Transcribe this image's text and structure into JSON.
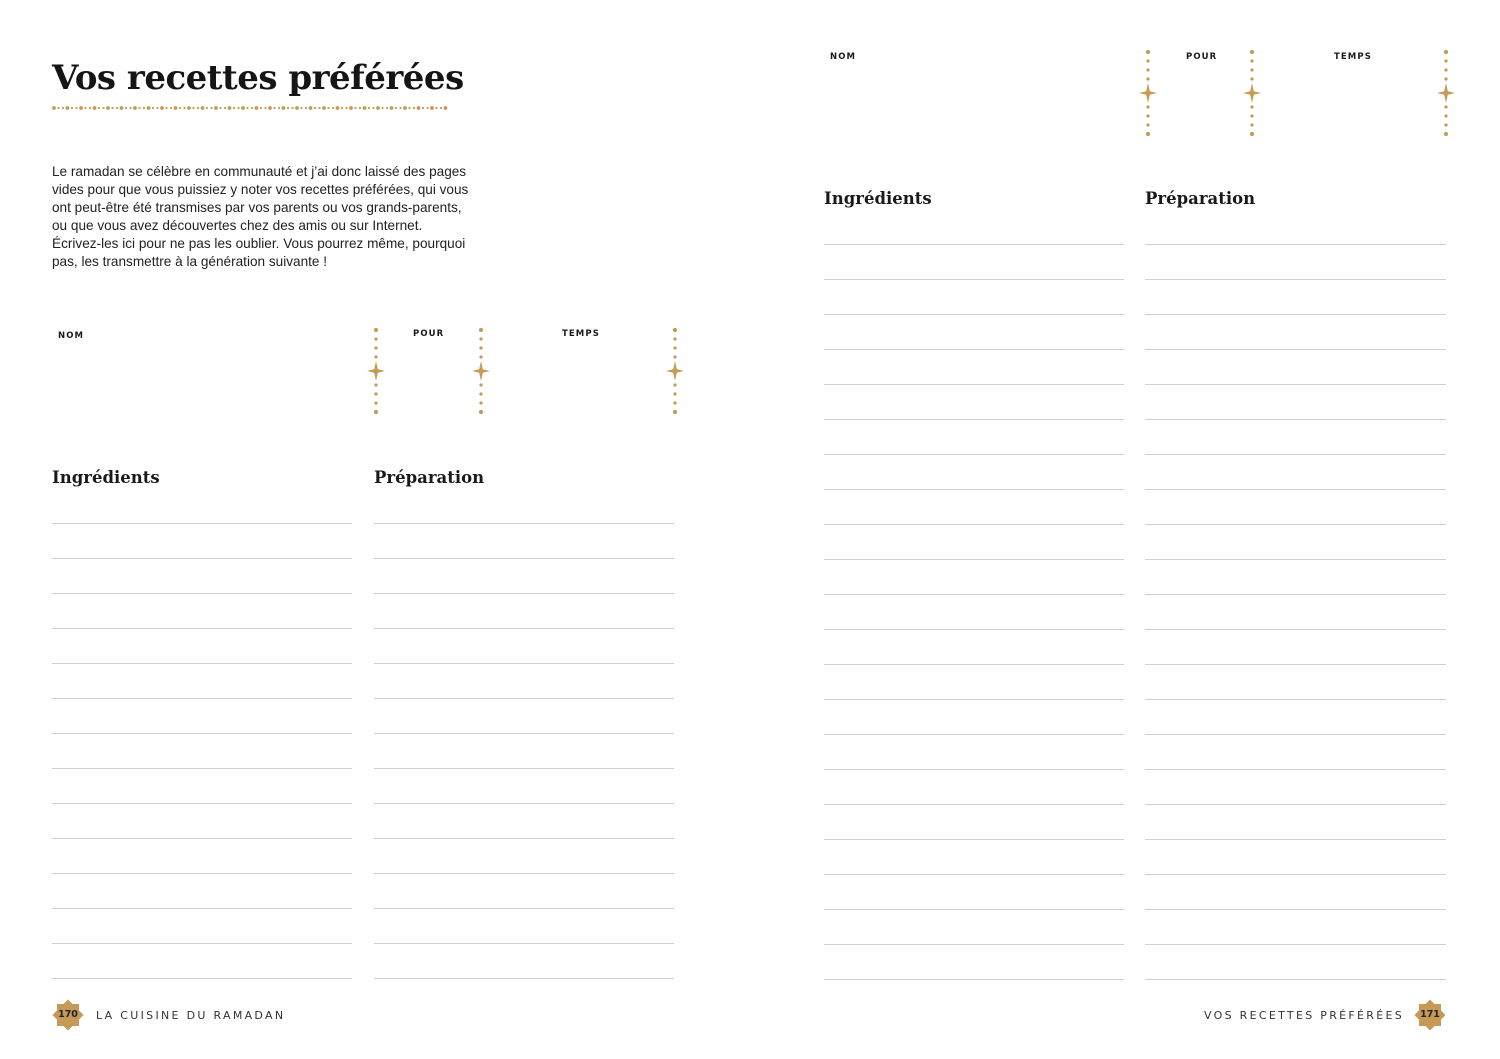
{
  "colors": {
    "accent": "#c49a56",
    "text": "#1a1a1a",
    "rule": "#cfcfcf"
  },
  "left_page": {
    "title": "Vos recettes préférées",
    "intro": "Le ramadan se célèbre en communauté et j’ai donc laissé des pages vides pour que vous puissiez y noter vos recettes préférées, qui vous ont peut-être été transmises par vos parents ou vos grands-parents, ou que vous avez découvertes chez des amis ou sur Internet. Écrivez-les ici pour ne pas les oublier. Vous pourrez même, pourquoi pas, les transmettre à la génération suivante !",
    "recipe": {
      "name_label": "NOM",
      "servings_label": "POUR",
      "time_label": "TEMPS",
      "ingredients_title": "Ingrédients",
      "preparation_title": "Préparation",
      "writing_lines": 14
    },
    "footer": {
      "page_number": "170",
      "running_title": "LA CUISINE DU RAMADAN"
    }
  },
  "right_page": {
    "recipe": {
      "name_label": "NOM",
      "servings_label": "POUR",
      "time_label": "TEMPS",
      "ingredients_title": "Ingrédients",
      "preparation_title": "Préparation",
      "writing_lines": 22
    },
    "footer": {
      "page_number": "171",
      "running_title": "VOS RECETTES PRÉFÉRÉES"
    }
  }
}
